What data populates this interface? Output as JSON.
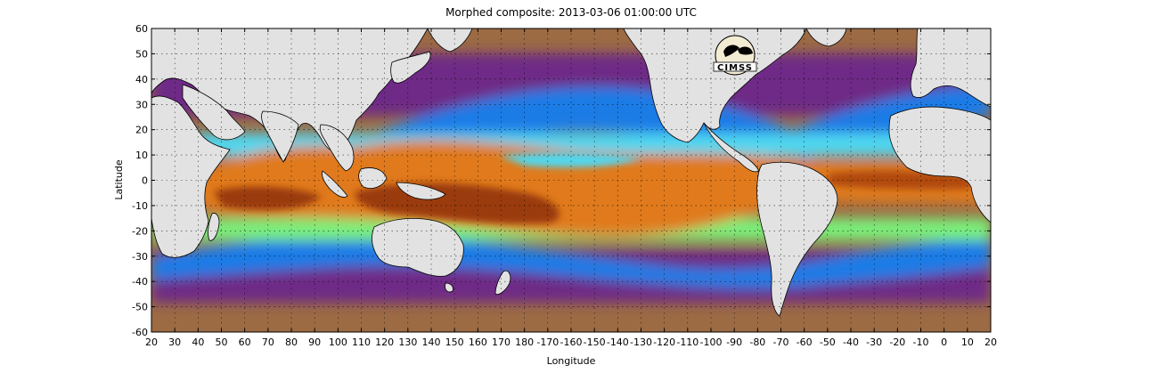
{
  "figure": {
    "title": "Morphed composite: 2013-03-06 01:00:00 UTC",
    "xlabel": "Longitude",
    "ylabel": "Latitude",
    "x_ticks": [
      "20",
      "30",
      "40",
      "50",
      "60",
      "70",
      "80",
      "90",
      "100",
      "110",
      "120",
      "130",
      "140",
      "150",
      "160",
      "170",
      "180",
      "-170",
      "-160",
      "-150",
      "-140",
      "-130",
      "-120",
      "-110",
      "-100",
      "-90",
      "-80",
      "-70",
      "-60",
      "-50",
      "-40",
      "-30",
      "-20",
      "-10",
      "0",
      "10",
      "20"
    ],
    "y_ticks": [
      "60",
      "50",
      "40",
      "30",
      "20",
      "10",
      "0",
      "-10",
      "-20",
      "-30",
      "-40",
      "-50",
      "-60"
    ],
    "logo_text": "CIMSS",
    "grid": "dotted",
    "colors": {
      "land": "#e2e2e2",
      "dry": "#a06a3c",
      "dry_purple": "#6a2a84",
      "moist_blue": "#1e7be6",
      "moist_cyan": "#4fd8f0",
      "moist_green": "#7af07a",
      "moist_yellow": "#f0e24a",
      "wet_orange": "#e07a1a",
      "very_wet": "#9a3a0a"
    }
  }
}
